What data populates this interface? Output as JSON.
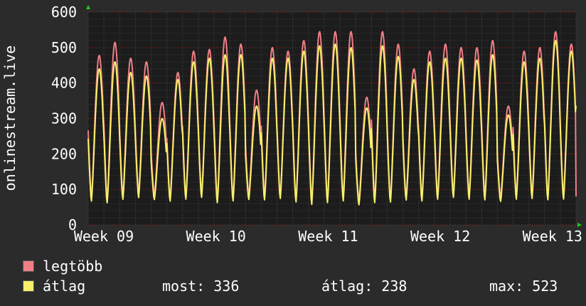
{
  "chart_data": {
    "type": "line",
    "ylabel": "onlinestream.live",
    "ylim": [
      0,
      600
    ],
    "y_ticks": [
      "0",
      "100",
      "200",
      "300",
      "400",
      "500",
      "600"
    ],
    "x_ticks": [
      "Week 09",
      "Week 10",
      "Week 11",
      "Week 12",
      "Week 13"
    ],
    "grid": true,
    "colors": {
      "background": "#2b2b2b",
      "plot_bg": "#1c1c1c",
      "grid": "#aa3333",
      "axis_arrow": "#22cc22",
      "text": "#ffffff"
    },
    "series": [
      {
        "name": "legtöbb",
        "color": "#f07f86",
        "daily_peaks": [
          478,
          515,
          470,
          460,
          345,
          430,
          490,
          495,
          530,
          510,
          380,
          500,
          490,
          520,
          545,
          545,
          545,
          360,
          545,
          510,
          440,
          490,
          510,
          500,
          500,
          520,
          335,
          490,
          500,
          545,
          510
        ],
        "daily_troughs": [
          75,
          70,
          80,
          85,
          80,
          75,
          80,
          85,
          70,
          75,
          80,
          78,
          82,
          70,
          65,
          70,
          75,
          65,
          70,
          70,
          78,
          75,
          80,
          85,
          80,
          78,
          75,
          80,
          82,
          78,
          80
        ]
      },
      {
        "name": "átlag",
        "color": "#f7f06a",
        "daily_peaks": [
          440,
          460,
          430,
          420,
          300,
          410,
          460,
          470,
          480,
          480,
          335,
          470,
          470,
          490,
          505,
          510,
          500,
          330,
          505,
          475,
          410,
          460,
          470,
          470,
          465,
          480,
          310,
          460,
          470,
          520,
          490
        ],
        "daily_troughs": [
          65,
          60,
          70,
          75,
          70,
          65,
          70,
          75,
          60,
          65,
          70,
          68,
          72,
          62,
          55,
          60,
          65,
          55,
          60,
          62,
          68,
          65,
          70,
          75,
          70,
          68,
          65,
          70,
          72,
          68,
          70
        ],
        "last": 336
      }
    ]
  },
  "legend": {
    "max_label": "legtöbb",
    "avg_label": "átlag",
    "max_color": "#f07f86",
    "avg_color": "#f7f06a"
  },
  "stats": {
    "now": "most: 336",
    "avg": "átlag: 238",
    "max": "max: 523"
  }
}
